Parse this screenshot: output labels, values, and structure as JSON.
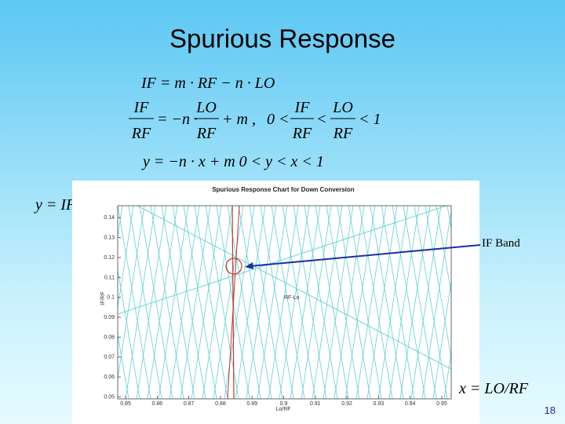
{
  "slide": {
    "title": "Spurious Response",
    "equation1": "IF = m · RF − n · LO",
    "equation2": {
      "frac1": [
        "IF",
        "RF"
      ],
      "mid1": "= −n ·",
      "frac2": [
        "LO",
        "RF"
      ],
      "mid2": "+ m ,",
      "lead": "0 <",
      "frac3": [
        "IF",
        "RF"
      ],
      "mid3": "<",
      "frac4": [
        "LO",
        "RF"
      ],
      "tail": "< 1"
    },
    "equation3": "y = −n · x + m    0 < y < x < 1",
    "y_def": "y = IF/RF",
    "x_def": "x = LO/RF",
    "callout": "IF Band",
    "page_number": "18"
  },
  "chart_data": {
    "type": "line",
    "title": "Spurious Response Chart for Down Conversion",
    "x_label": "Lo/RF",
    "y_label": "IF/RF",
    "annotation": "RF-Lo",
    "xlim": [
      0.8475,
      0.953
    ],
    "ylim": [
      0.049,
      0.146
    ],
    "xticks": [
      0.85,
      0.86,
      0.87,
      0.88,
      0.89,
      0.9,
      0.91,
      0.92,
      0.93,
      0.94,
      0.95
    ],
    "yticks": [
      0.05,
      0.06,
      0.07,
      0.08,
      0.09,
      0.1,
      0.11,
      0.12,
      0.13,
      0.14
    ]
  }
}
